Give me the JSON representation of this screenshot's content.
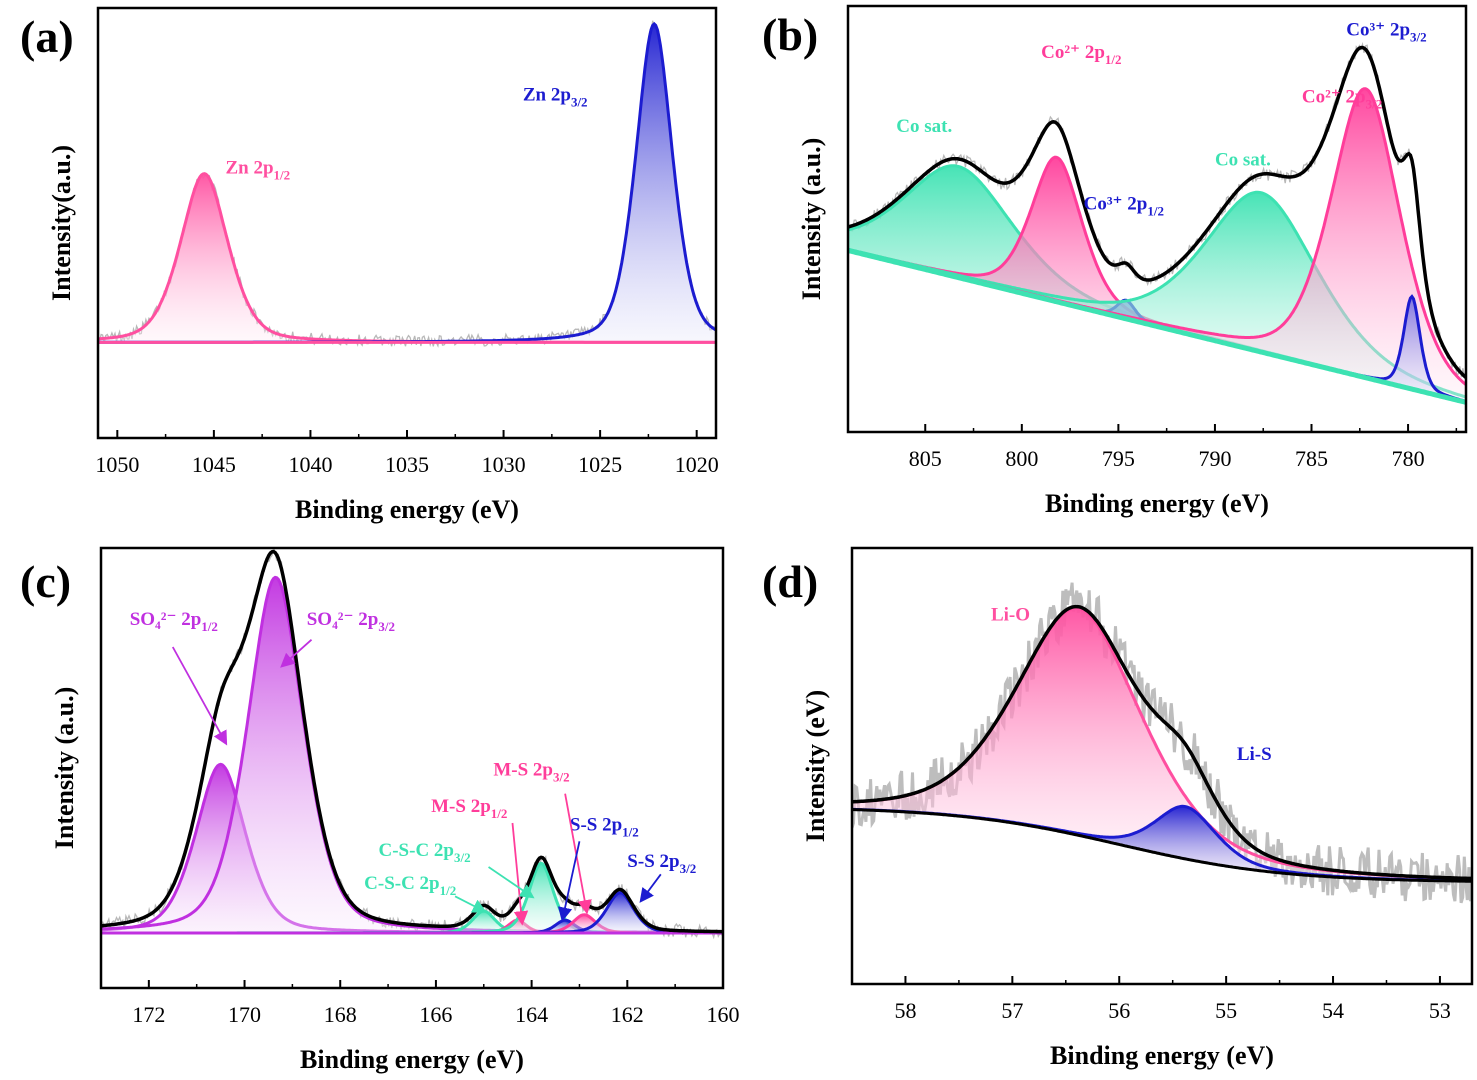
{
  "chart_data": [
    {
      "panel": "(a)",
      "type": "line",
      "xlabel": "Binding energy (eV)",
      "ylabel": "Intensity(a.u.)",
      "xlim": [
        1051,
        1019
      ],
      "xticks": [
        1050,
        1045,
        1040,
        1035,
        1030,
        1025,
        1020
      ],
      "ylim": [
        -0.3,
        1.05
      ],
      "baseline": 0,
      "envelope_color": "#2222cc",
      "peaks": [
        {
          "center": 1045.5,
          "height": 0.53,
          "width": 1.3,
          "color": "#ff4fa0"
        },
        {
          "center": 1022.2,
          "height": 1.0,
          "width": 1.0,
          "color": "#1c1cd0"
        }
      ],
      "annotations": [
        {
          "text": "Zn 2p",
          "sub": "1/2",
          "color": "#ff4fa0",
          "x": 1044.4,
          "y": 0.53
        },
        {
          "text": "Zn 2p",
          "sub": "3/2",
          "color": "#1c1cd0",
          "x": 1029.0,
          "y": 0.76
        }
      ]
    },
    {
      "panel": "(b)",
      "type": "line",
      "xlabel": "Binding energy (eV)",
      "ylabel": "Intensity (a.u.)",
      "xlim": [
        809,
        777
      ],
      "xticks": [
        805,
        800,
        795,
        790,
        785,
        780
      ],
      "ylim": [
        -0.05,
        1.1
      ],
      "baseline": {
        "start": [
          809,
          0.44
        ],
        "end": [
          777,
          0.03
        ]
      },
      "envelope_color": "#000000",
      "peaks": [
        {
          "center": 803.3,
          "height": 0.3,
          "width": 3.0,
          "color": "#3de2b2"
        },
        {
          "center": 798.2,
          "height": 0.39,
          "width": 1.4,
          "color": "#ff3d9a"
        },
        {
          "center": 794.6,
          "height": 0.05,
          "width": 0.5,
          "color": "#1c1cd0"
        },
        {
          "center": 787.6,
          "height": 0.43,
          "width": 3.1,
          "color": "#3de2b2"
        },
        {
          "center": 782.2,
          "height": 0.78,
          "width": 1.9,
          "color": "#ff3d9a"
        },
        {
          "center": 779.8,
          "height": 0.25,
          "width": 0.45,
          "color": "#1c1cd0"
        }
      ],
      "annotations": [
        {
          "text": "Co sat.",
          "sub": "",
          "color": "#3de2b2",
          "x": 806.5,
          "y": 0.76
        },
        {
          "text": "Co²⁺ 2p",
          "sub": "1/2",
          "color": "#ff3d9a",
          "x": 799.0,
          "y": 0.96
        },
        {
          "text": "Co³⁺ 2p",
          "sub": "1/2",
          "color": "#1c1cd0",
          "x": 796.8,
          "y": 0.55
        },
        {
          "text": "Co sat.",
          "sub": "",
          "color": "#3de2b2",
          "x": 790.0,
          "y": 0.67
        },
        {
          "text": "Co²⁺ 2p",
          "sub": "3/2",
          "color": "#ff3d9a",
          "x": 785.5,
          "y": 0.84
        },
        {
          "text": "Co³⁺ 2p",
          "sub": "3/2",
          "color": "#1c1cd0",
          "x": 783.2,
          "y": 1.02
        }
      ]
    },
    {
      "panel": "(c)",
      "type": "line",
      "xlabel": "Binding energy (eV)",
      "ylabel": "Intensity (a.u.)",
      "xlim": [
        173,
        160
      ],
      "xticks": [
        172,
        170,
        168,
        166,
        164,
        162,
        160
      ],
      "ylim": [
        -0.15,
        1.05
      ],
      "baseline": 0,
      "envelope_color": "#000000",
      "peaks": [
        {
          "center": 170.5,
          "height": 0.46,
          "width": 0.55,
          "color": "#c030e0"
        },
        {
          "center": 169.35,
          "height": 0.97,
          "width": 0.62,
          "color": "#c030e0"
        },
        {
          "center": 165.0,
          "height": 0.06,
          "width": 0.25,
          "color": "#3de2b2"
        },
        {
          "center": 164.3,
          "height": 0.035,
          "width": 0.2,
          "color": "#ff3d9a"
        },
        {
          "center": 163.8,
          "height": 0.19,
          "width": 0.27,
          "color": "#3de2b2"
        },
        {
          "center": 163.3,
          "height": 0.035,
          "width": 0.22,
          "color": "#1c1cd0"
        },
        {
          "center": 162.9,
          "height": 0.05,
          "width": 0.25,
          "color": "#ff3d9a"
        },
        {
          "center": 162.15,
          "height": 0.11,
          "width": 0.3,
          "color": "#1c1cd0"
        }
      ],
      "annotations": [
        {
          "text": "SO₄²⁻ 2p",
          "sub": "1/2",
          "color": "#c030e0",
          "x": 172.4,
          "y": 0.84
        },
        {
          "text": "SO₄²⁻ 2p",
          "sub": "3/2",
          "color": "#c030e0",
          "x": 168.7,
          "y": 0.84
        },
        {
          "text": "M-S 2p",
          "sub": "3/2",
          "color": "#ff3d9a",
          "x": 164.8,
          "y": 0.43
        },
        {
          "text": "M-S 2p",
          "sub": "1/2",
          "color": "#ff3d9a",
          "x": 166.1,
          "y": 0.33
        },
        {
          "text": "S-S 2p",
          "sub": "1/2",
          "color": "#1c1cd0",
          "x": 163.2,
          "y": 0.28
        },
        {
          "text": "C-S-C 2p",
          "sub": "3/2",
          "color": "#3de2b2",
          "x": 167.2,
          "y": 0.21
        },
        {
          "text": "S-S 2p",
          "sub": "3/2",
          "color": "#1c1cd0",
          "x": 162.0,
          "y": 0.18
        },
        {
          "text": "C-S-C 2p",
          "sub": "1/2",
          "color": "#3de2b2",
          "x": 167.5,
          "y": 0.12
        }
      ]
    },
    {
      "panel": "(d)",
      "type": "line",
      "xlabel": "Binding energy (eV)",
      "ylabel": "Intensity (eV)",
      "xlim": [
        58.5,
        52.7
      ],
      "xticks": [
        58,
        57,
        56,
        55,
        54,
        53
      ],
      "ylim": [
        -0.35,
        1.15
      ],
      "baseline": {
        "start": [
          58.5,
          0.26
        ],
        "end": [
          52.7,
          0.0
        ],
        "midpoint": 56.0,
        "steepness": 1.3
      },
      "envelope_color": "#000000",
      "peaks": [
        {
          "center": 56.38,
          "height": 0.78,
          "width": 0.62,
          "color": "#ff4fa0"
        },
        {
          "center": 55.38,
          "height": 0.18,
          "width": 0.3,
          "color": "#1c1cd0"
        }
      ],
      "annotations": [
        {
          "text": "Li-O",
          "sub": "",
          "color": "#ff4fa0",
          "x": 57.2,
          "y": 0.9
        },
        {
          "text": "Li-S",
          "sub": "",
          "color": "#1c1cd0",
          "x": 54.9,
          "y": 0.42
        }
      ]
    }
  ]
}
